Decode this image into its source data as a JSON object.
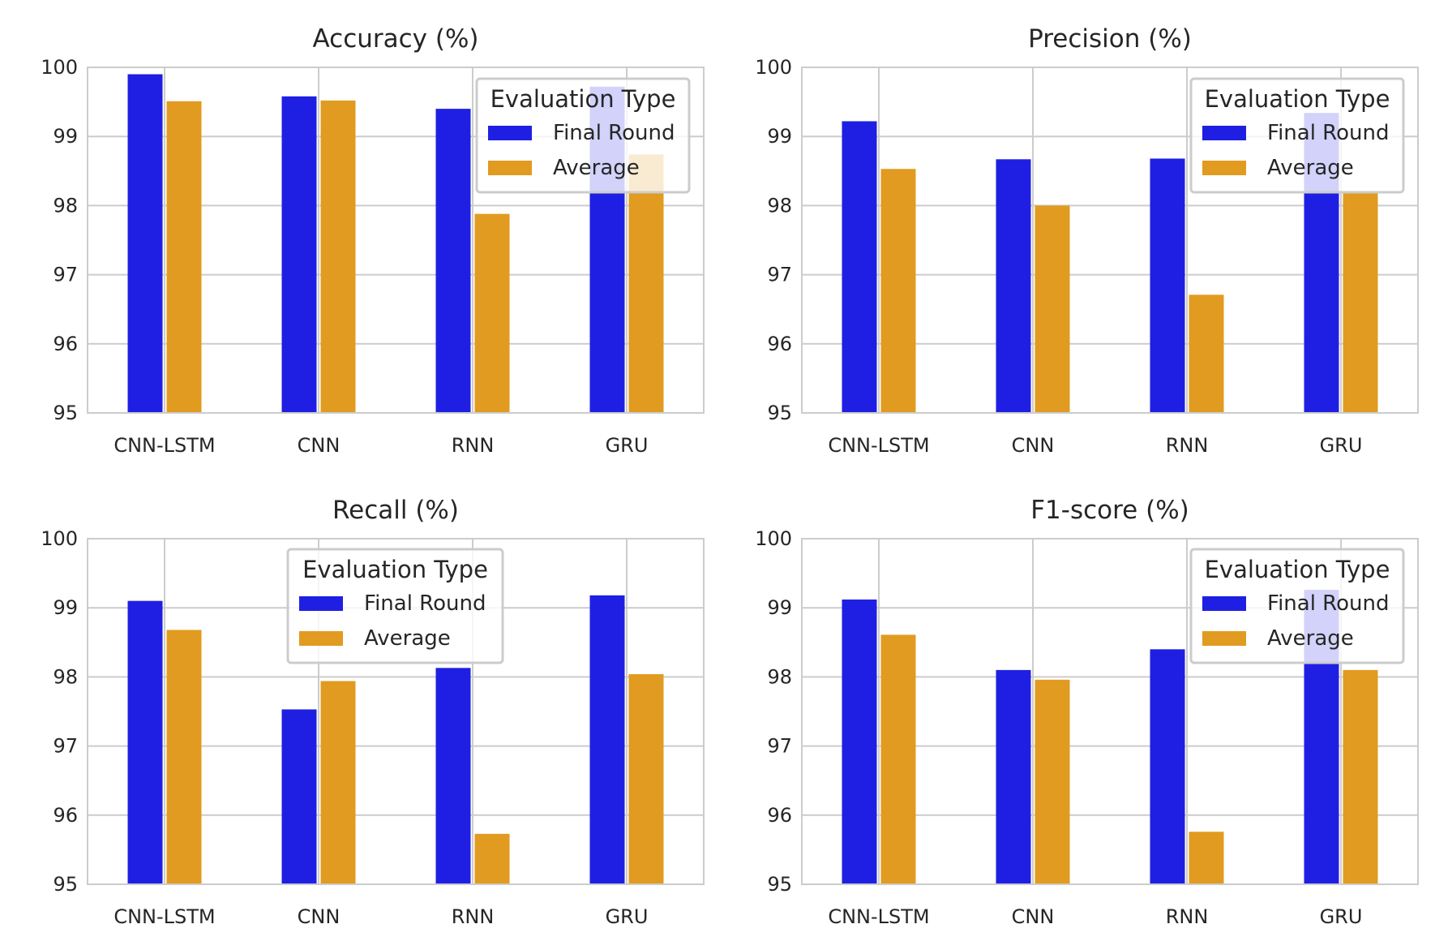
{
  "colors": {
    "Final Round": "#1f1fe3",
    "Average": "#e19b20"
  },
  "chart_data": [
    {
      "type": "bar",
      "title": "Accuracy (%)",
      "categories": [
        "CNN-LSTM",
        "CNN",
        "RNN",
        "GRU"
      ],
      "ylim": [
        95,
        100
      ],
      "yticks": [
        "95",
        "96",
        "97",
        "98",
        "99",
        "100"
      ],
      "grid": true,
      "legend": {
        "title": "Evaluation Type",
        "placement": "upper-right"
      },
      "series": [
        {
          "name": "Final Round",
          "values": [
            99.9,
            99.58,
            99.4,
            99.72
          ]
        },
        {
          "name": "Average",
          "values": [
            99.51,
            99.52,
            97.88,
            98.74
          ]
        }
      ]
    },
    {
      "type": "bar",
      "title": "Precision (%)",
      "categories": [
        "CNN-LSTM",
        "CNN",
        "RNN",
        "GRU"
      ],
      "ylim": [
        95,
        100
      ],
      "yticks": [
        "95",
        "96",
        "97",
        "98",
        "99",
        "100"
      ],
      "grid": true,
      "legend": {
        "title": "Evaluation Type",
        "placement": "upper-right"
      },
      "series": [
        {
          "name": "Final Round",
          "values": [
            99.22,
            98.67,
            98.68,
            99.34
          ]
        },
        {
          "name": "Average",
          "values": [
            98.53,
            98.0,
            96.71,
            98.2
          ]
        }
      ]
    },
    {
      "type": "bar",
      "title": "Recall (%)",
      "categories": [
        "CNN-LSTM",
        "CNN",
        "RNN",
        "GRU"
      ],
      "ylim": [
        95,
        100
      ],
      "yticks": [
        "95",
        "96",
        "97",
        "98",
        "99",
        "100"
      ],
      "grid": true,
      "legend": {
        "title": "Evaluation Type",
        "placement": "upper-center"
      },
      "series": [
        {
          "name": "Final Round",
          "values": [
            99.1,
            97.53,
            98.13,
            99.18
          ]
        },
        {
          "name": "Average",
          "values": [
            98.68,
            97.94,
            95.73,
            98.04
          ]
        }
      ]
    },
    {
      "type": "bar",
      "title": "F1-score (%)",
      "categories": [
        "CNN-LSTM",
        "CNN",
        "RNN",
        "GRU"
      ],
      "ylim": [
        95,
        100
      ],
      "yticks": [
        "95",
        "96",
        "97",
        "98",
        "99",
        "100"
      ],
      "grid": true,
      "legend": {
        "title": "Evaluation Type",
        "placement": "upper-right"
      },
      "series": [
        {
          "name": "Final Round",
          "values": [
            99.12,
            98.1,
            98.4,
            99.26
          ]
        },
        {
          "name": "Average",
          "values": [
            98.61,
            97.96,
            95.76,
            98.1
          ]
        }
      ]
    }
  ]
}
